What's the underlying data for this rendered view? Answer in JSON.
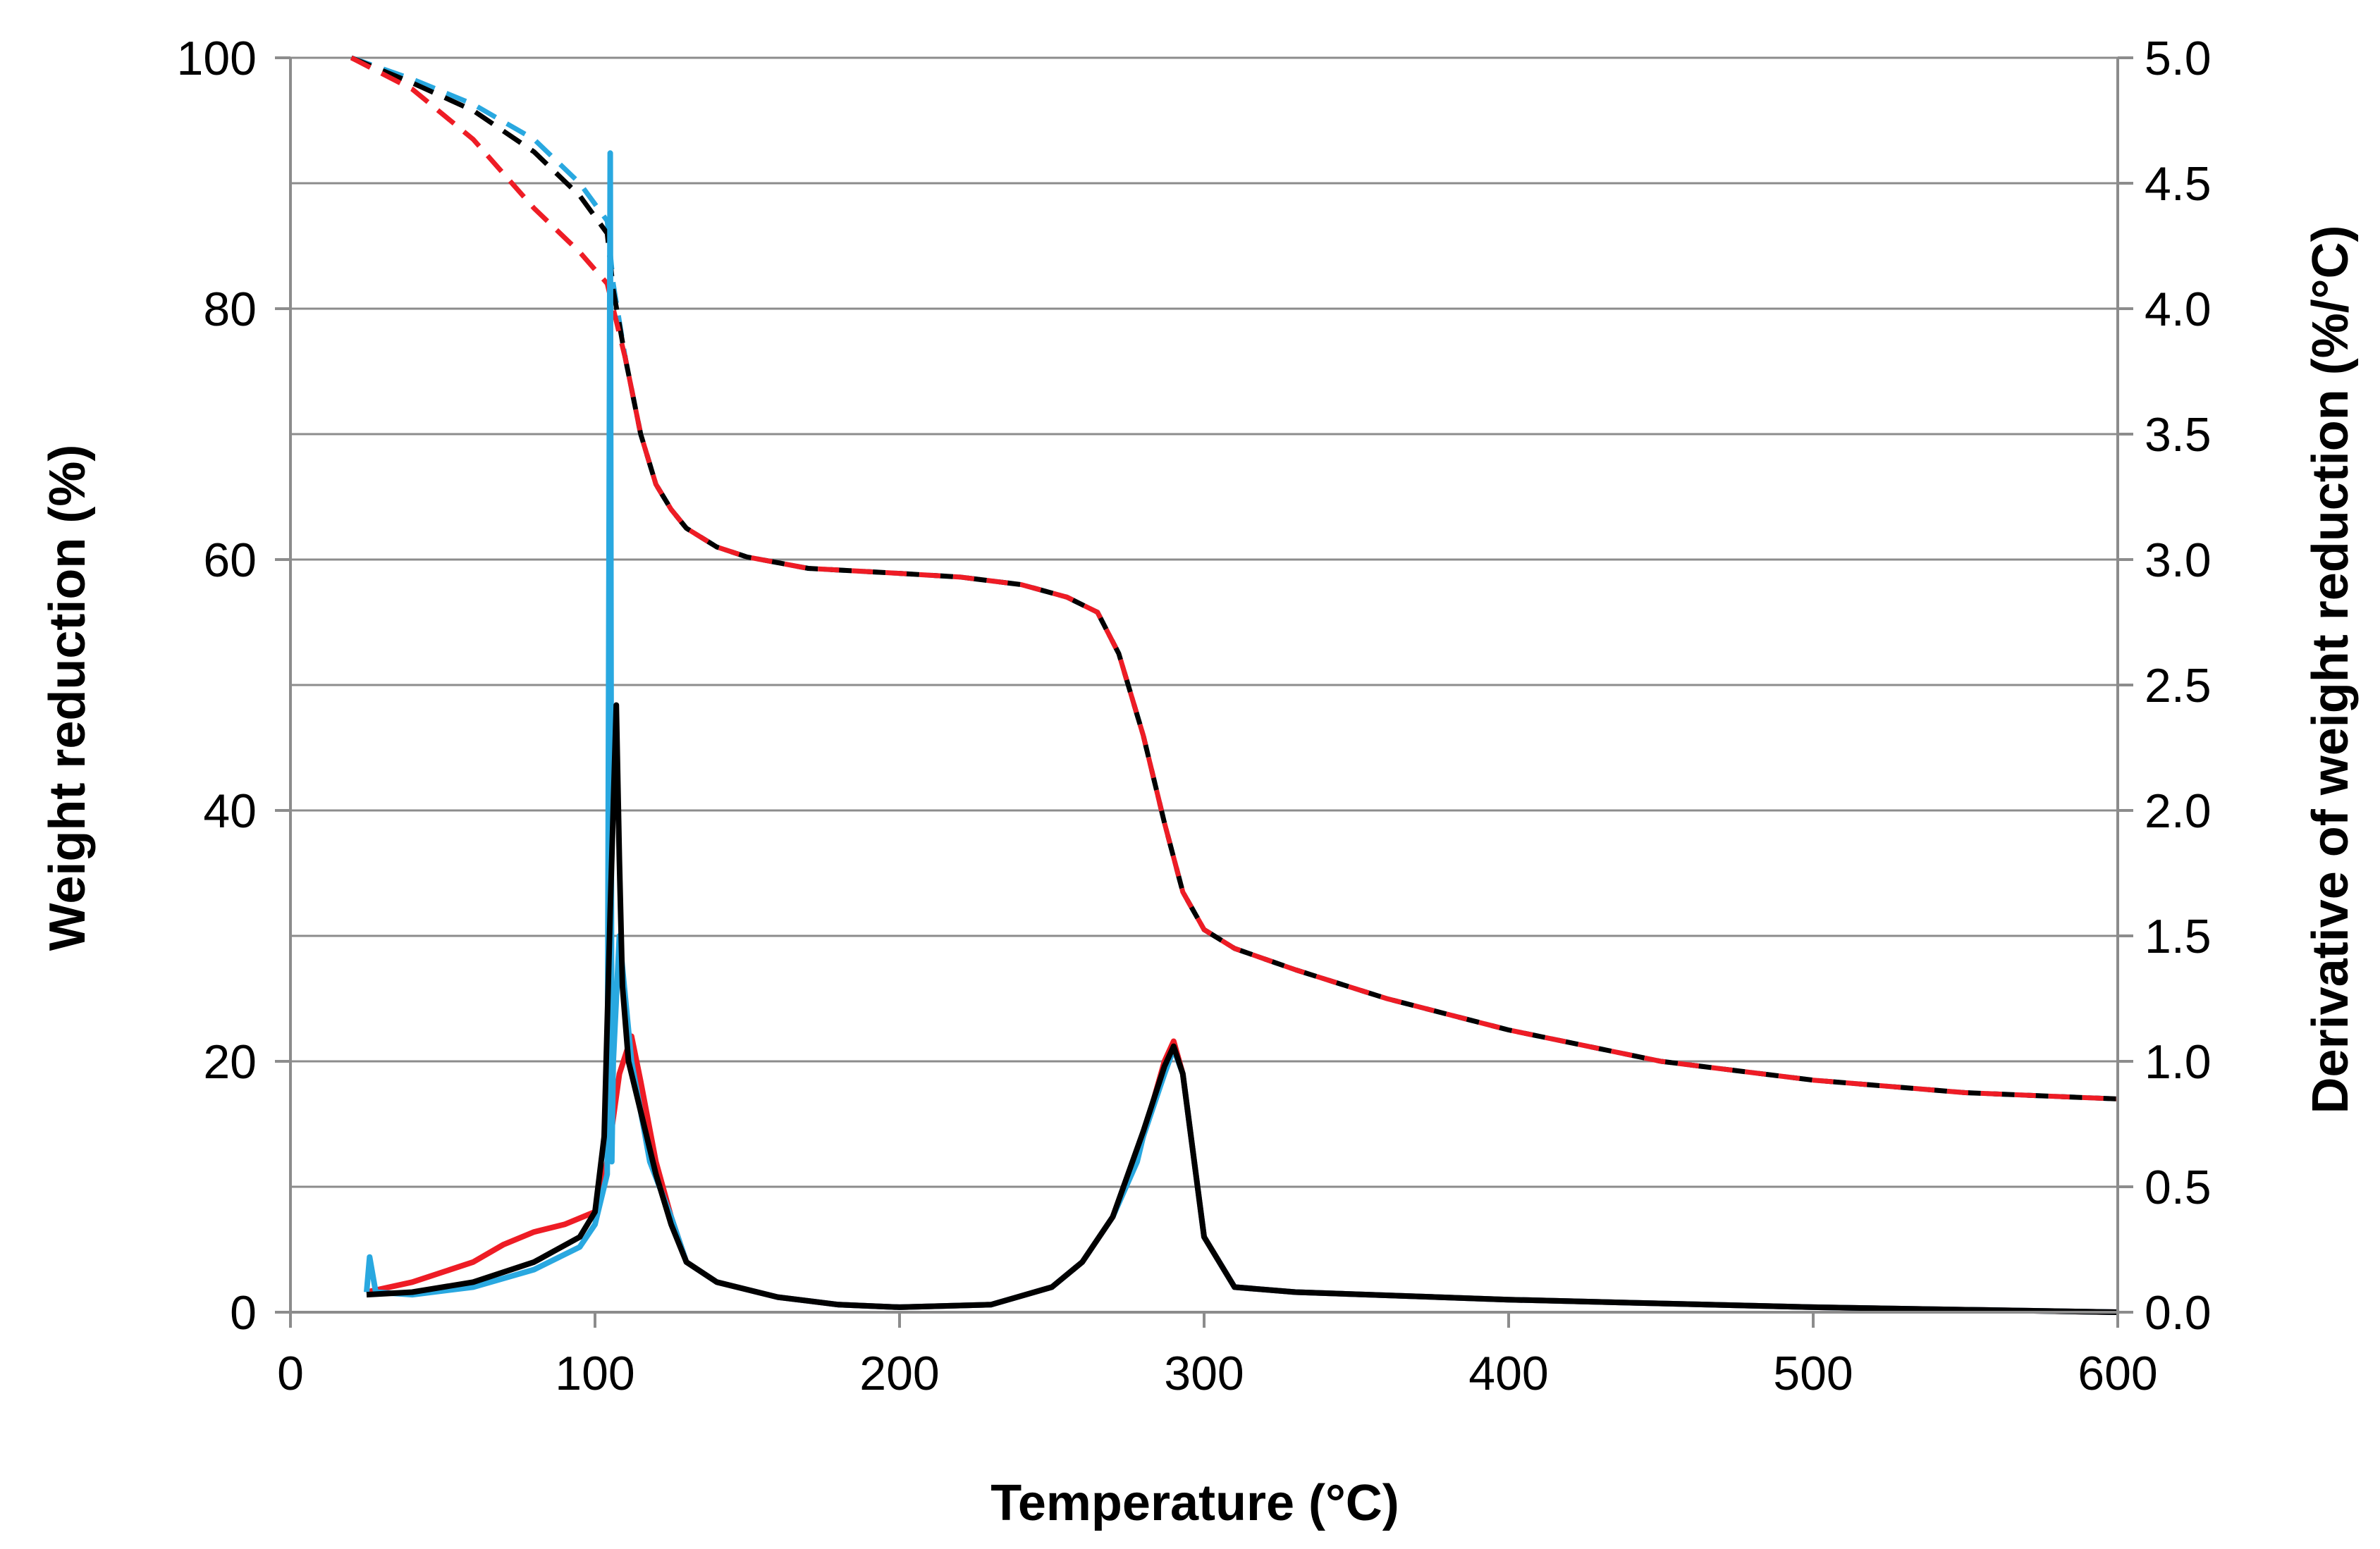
{
  "chart_data": {
    "type": "line",
    "title": "",
    "xlabel": "Temperature (°C)",
    "ylabel_left": "Weight reduction (%)",
    "ylabel_right": "Derivative of weight reduction (%/°C)",
    "xlim": [
      0,
      600
    ],
    "ylim_left": [
      0,
      100
    ],
    "ylim_right": [
      0,
      5
    ],
    "x_ticks": [
      "0",
      "100",
      "200",
      "300",
      "400",
      "500",
      "600"
    ],
    "y_left_ticks": [
      "0",
      "20",
      "40",
      "60",
      "80",
      "100"
    ],
    "y_right_ticks": [
      "0.0",
      "0.5",
      "1.0",
      "1.5",
      "2.0",
      "2.5",
      "3.0",
      "3.5",
      "4.0",
      "4.5",
      "5.0"
    ],
    "grid": "horizontal",
    "legend": "none",
    "series": [
      {
        "name": "weight-blue",
        "axis": "left",
        "color": "#29a8e0",
        "dash": "dashed",
        "x": [
          20,
          40,
          60,
          80,
          95,
          104,
          106,
          110,
          115,
          120,
          125,
          130,
          140,
          150,
          170,
          200,
          220,
          240,
          255,
          265,
          272,
          280,
          287,
          293,
          300,
          310,
          330,
          360,
          400,
          450,
          500,
          550,
          600
        ],
        "y": [
          100,
          98.3,
          96.3,
          93.5,
          90.0,
          87.0,
          82.0,
          76.0,
          70.0,
          66.0,
          64.0,
          62.5,
          61.0,
          60.2,
          59.3,
          58.9,
          58.6,
          58.0,
          57.0,
          55.8,
          52.5,
          46.0,
          39.0,
          33.5,
          30.5,
          29.0,
          27.3,
          25.0,
          22.5,
          20.0,
          18.5,
          17.5,
          17.0
        ]
      },
      {
        "name": "weight-black",
        "axis": "left",
        "color": "#000000",
        "dash": "dashed",
        "x": [
          20,
          40,
          60,
          80,
          95,
          104,
          106,
          110,
          115,
          120,
          125,
          130,
          140,
          150,
          170,
          200,
          220,
          240,
          255,
          265,
          272,
          280,
          287,
          293,
          300,
          310,
          330,
          360,
          400,
          450,
          500,
          550,
          600
        ],
        "y": [
          100,
          98.0,
          95.8,
          92.5,
          89.0,
          86.0,
          81.5,
          76.0,
          70.0,
          66.0,
          64.0,
          62.5,
          61.0,
          60.2,
          59.3,
          58.9,
          58.6,
          58.0,
          57.0,
          55.8,
          52.5,
          46.0,
          39.0,
          33.5,
          30.5,
          29.0,
          27.3,
          25.0,
          22.5,
          20.0,
          18.5,
          17.5,
          17.0
        ]
      },
      {
        "name": "weight-red",
        "axis": "left",
        "color": "#ee1c25",
        "dash": "dashed",
        "x": [
          20,
          40,
          60,
          80,
          95,
          104,
          106,
          110,
          115,
          120,
          125,
          130,
          140,
          150,
          170,
          200,
          220,
          240,
          255,
          265,
          272,
          280,
          287,
          293,
          300,
          310,
          330,
          360,
          400,
          450,
          500,
          550,
          600
        ],
        "y": [
          100,
          97.5,
          93.5,
          88.0,
          84.5,
          82.0,
          80.0,
          76.0,
          70.0,
          66.0,
          64.0,
          62.5,
          61.0,
          60.2,
          59.3,
          58.9,
          58.6,
          58.0,
          57.0,
          55.8,
          52.5,
          46.0,
          39.0,
          33.5,
          30.5,
          29.0,
          27.3,
          25.0,
          22.5,
          20.0,
          18.5,
          17.5,
          17.0
        ]
      },
      {
        "name": "derivative-red",
        "axis": "right",
        "color": "#ee1c25",
        "dash": "solid",
        "x": [
          25,
          40,
          60,
          70,
          80,
          90,
          100,
          104,
          108,
          112,
          115,
          120,
          125,
          130,
          140,
          160,
          180,
          200,
          230,
          250,
          260,
          270,
          280,
          287,
          290,
          293,
          300,
          310,
          330,
          400,
          500,
          600
        ],
        "y": [
          0.08,
          0.12,
          0.2,
          0.27,
          0.32,
          0.35,
          0.4,
          0.6,
          0.95,
          1.1,
          0.92,
          0.6,
          0.38,
          0.2,
          0.12,
          0.06,
          0.03,
          0.02,
          0.03,
          0.1,
          0.2,
          0.38,
          0.7,
          1.0,
          1.08,
          0.95,
          0.3,
          0.1,
          0.08,
          0.05,
          0.02,
          0.0
        ]
      },
      {
        "name": "derivative-blue",
        "axis": "right",
        "color": "#29a8e0",
        "dash": "solid",
        "x": [
          25,
          26,
          28,
          40,
          60,
          80,
          95,
          100,
          104,
          105,
          105.5,
          106,
          108,
          112,
          118,
          125,
          130,
          140,
          160,
          180,
          200,
          230,
          250,
          260,
          270,
          278,
          280,
          287,
          290,
          293,
          300,
          310,
          330,
          400,
          500,
          600
        ],
        "y": [
          0.08,
          0.22,
          0.08,
          0.07,
          0.1,
          0.17,
          0.26,
          0.35,
          0.55,
          4.62,
          0.6,
          1.0,
          1.5,
          1.0,
          0.6,
          0.38,
          0.2,
          0.12,
          0.06,
          0.03,
          0.02,
          0.03,
          0.1,
          0.2,
          0.38,
          0.6,
          0.7,
          0.95,
          1.05,
          0.95,
          0.3,
          0.1,
          0.08,
          0.05,
          0.02,
          0.0
        ]
      },
      {
        "name": "derivative-black",
        "axis": "right",
        "color": "#000000",
        "dash": "solid",
        "x": [
          25,
          40,
          60,
          80,
          95,
          100,
          103,
          105,
          107,
          108,
          109,
          111,
          115,
          120,
          125,
          130,
          140,
          160,
          180,
          200,
          230,
          250,
          260,
          270,
          280,
          287,
          290,
          293,
          300,
          310,
          330,
          400,
          500,
          600
        ],
        "y": [
          0.07,
          0.08,
          0.12,
          0.2,
          0.3,
          0.4,
          0.7,
          1.6,
          2.42,
          1.8,
          1.3,
          1.0,
          0.8,
          0.55,
          0.35,
          0.2,
          0.12,
          0.06,
          0.03,
          0.02,
          0.03,
          0.1,
          0.2,
          0.38,
          0.72,
          0.98,
          1.06,
          0.95,
          0.3,
          0.1,
          0.08,
          0.05,
          0.02,
          0.0
        ]
      }
    ]
  }
}
